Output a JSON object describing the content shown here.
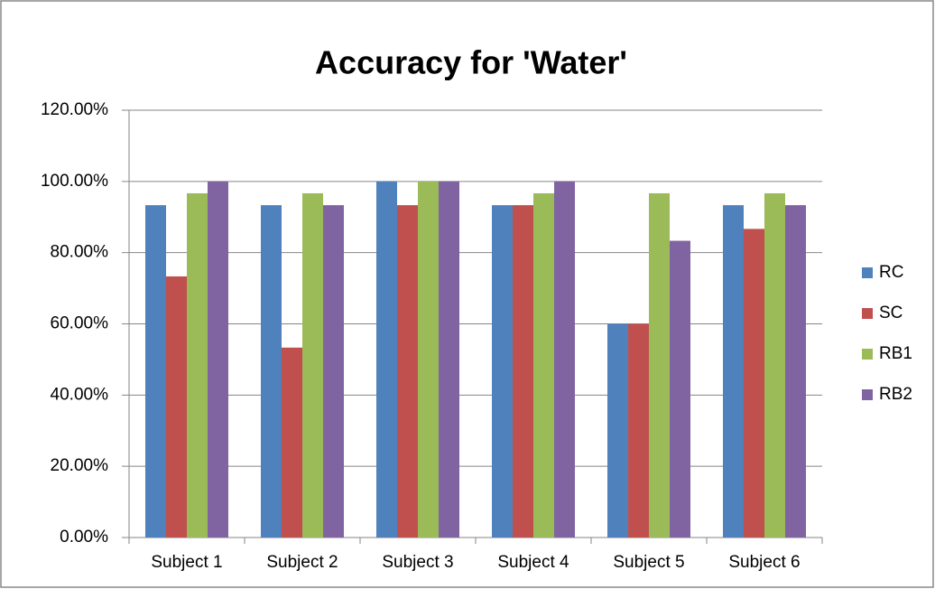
{
  "chart_data": {
    "type": "bar",
    "title": "Accuracy for 'Water'",
    "categories": [
      "Subject 1",
      "Subject 2",
      "Subject 3",
      "Subject 4",
      "Subject 5",
      "Subject 6"
    ],
    "series": [
      {
        "name": "RC",
        "color": "#4f81bd",
        "values": [
          93.33,
          93.33,
          100,
          93.33,
          60,
          93.33
        ]
      },
      {
        "name": "SC",
        "color": "#c0504d",
        "values": [
          73.33,
          53.33,
          93.33,
          93.33,
          60,
          86.67
        ]
      },
      {
        "name": "RB1",
        "color": "#9bbb59",
        "values": [
          96.67,
          96.67,
          100,
          96.67,
          96.67,
          96.67
        ]
      },
      {
        "name": "RB2",
        "color": "#8064a2",
        "values": [
          100,
          93.33,
          100,
          100,
          83.33,
          93.33
        ]
      }
    ],
    "ylim": [
      0,
      120
    ],
    "yticks": [
      {
        "value": 0,
        "label": "0.00%"
      },
      {
        "value": 20,
        "label": "20.00%"
      },
      {
        "value": 40,
        "label": "40.00%"
      },
      {
        "value": 60,
        "label": "60.00%"
      },
      {
        "value": 80,
        "label": "80.00%"
      },
      {
        "value": 100,
        "label": "100.00%"
      },
      {
        "value": 120,
        "label": "120.00%"
      }
    ],
    "grid": true,
    "legend": "right"
  }
}
